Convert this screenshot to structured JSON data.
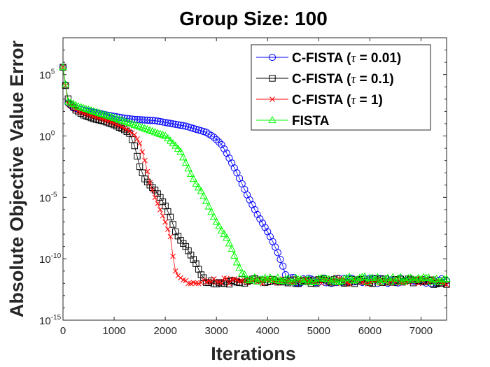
{
  "chart_data": {
    "type": "line",
    "title": "Group Size:  100",
    "xlabel": "Iterations",
    "ylabel": "Absolute Objective Value Error",
    "xlim": [
      0,
      7500
    ],
    "ylim_log10": [
      -15,
      8
    ],
    "x_ticks": [
      0,
      1000,
      2000,
      3000,
      4000,
      5000,
      6000,
      7000
    ],
    "y_ticks": [
      {
        "base": "10",
        "exp": "5",
        "log10": 5
      },
      {
        "base": "10",
        "exp": "0",
        "log10": 0
      },
      {
        "base": "10",
        "exp": "-5",
        "log10": -5
      },
      {
        "base": "10",
        "exp": "-10",
        "log10": -10
      },
      {
        "base": "10",
        "exp": "-15",
        "log10": -15
      }
    ],
    "legend_position": "top-right",
    "series": [
      {
        "name": "C-FISTA (τ = 0.01)",
        "legend_prefix": "C-FISTA (",
        "legend_tau": "τ",
        "legend_suffix": " = 0.01)",
        "color": "#0000ff",
        "marker": "circle",
        "points": [
          [
            0,
            5.6
          ],
          [
            100,
            2.7
          ],
          [
            200,
            2.3
          ],
          [
            400,
            2.1
          ],
          [
            600,
            1.95
          ],
          [
            800,
            1.75
          ],
          [
            1000,
            1.6
          ],
          [
            1200,
            1.45
          ],
          [
            1400,
            1.35
          ],
          [
            1600,
            1.3
          ],
          [
            1800,
            1.25
          ],
          [
            2000,
            1.1
          ],
          [
            2200,
            0.95
          ],
          [
            2400,
            0.8
          ],
          [
            2600,
            0.55
          ],
          [
            2800,
            0.3
          ],
          [
            2950,
            -0.1
          ],
          [
            3100,
            -0.7
          ],
          [
            3200,
            -1.4
          ],
          [
            3300,
            -2.2
          ],
          [
            3400,
            -3.0
          ],
          [
            3500,
            -3.9
          ],
          [
            3600,
            -4.8
          ],
          [
            3700,
            -5.6
          ],
          [
            3800,
            -6.4
          ],
          [
            3900,
            -7.1
          ],
          [
            4000,
            -7.8
          ],
          [
            4100,
            -8.6
          ],
          [
            4200,
            -9.5
          ],
          [
            4300,
            -10.6
          ],
          [
            4350,
            -11.3
          ],
          [
            4400,
            -11.7
          ],
          [
            4600,
            -11.75
          ],
          [
            5000,
            -11.8
          ],
          [
            5500,
            -11.78
          ],
          [
            6000,
            -11.8
          ],
          [
            6500,
            -11.82
          ],
          [
            7000,
            -11.8
          ],
          [
            7500,
            -11.85
          ]
        ]
      },
      {
        "name": "C-FISTA (τ = 0.1)",
        "legend_prefix": "C-FISTA (",
        "legend_tau": "τ",
        "legend_suffix": " = 0.1)",
        "color": "#000000",
        "marker": "square",
        "points": [
          [
            0,
            5.6
          ],
          [
            80,
            3.2
          ],
          [
            150,
            2.6
          ],
          [
            250,
            2.1
          ],
          [
            400,
            1.7
          ],
          [
            600,
            1.4
          ],
          [
            800,
            1.2
          ],
          [
            1000,
            0.9
          ],
          [
            1200,
            0.5
          ],
          [
            1300,
            0.2
          ],
          [
            1400,
            -0.8
          ],
          [
            1500,
            -2.5
          ],
          [
            1600,
            -3.5
          ],
          [
            1700,
            -4.0
          ],
          [
            1800,
            -4.4
          ],
          [
            1900,
            -5.0
          ],
          [
            2000,
            -5.7
          ],
          [
            2100,
            -6.6
          ],
          [
            2200,
            -7.8
          ],
          [
            2300,
            -8.5
          ],
          [
            2400,
            -9.0
          ],
          [
            2500,
            -9.7
          ],
          [
            2600,
            -10.4
          ],
          [
            2700,
            -11.3
          ],
          [
            2800,
            -11.75
          ],
          [
            3000,
            -11.9
          ],
          [
            3500,
            -11.85
          ],
          [
            4000,
            -11.8
          ],
          [
            5000,
            -11.82
          ],
          [
            6000,
            -11.8
          ],
          [
            7000,
            -11.85
          ],
          [
            7500,
            -11.9
          ]
        ]
      },
      {
        "name": "C-FISTA (τ = 1)",
        "legend_prefix": "C-FISTA (",
        "legend_tau": "τ",
        "legend_suffix": " = 1)",
        "color": "#ff0000",
        "marker": "x",
        "points": [
          [
            0,
            5.6
          ],
          [
            100,
            2.6
          ],
          [
            300,
            2.0
          ],
          [
            600,
            1.6
          ],
          [
            900,
            1.2
          ],
          [
            1100,
            0.85
          ],
          [
            1300,
            0.4
          ],
          [
            1400,
            0.1
          ],
          [
            1500,
            -0.6
          ],
          [
            1600,
            -2.0
          ],
          [
            1700,
            -3.8
          ],
          [
            1800,
            -5.0
          ],
          [
            1900,
            -6.0
          ],
          [
            2000,
            -7.0
          ],
          [
            2100,
            -8.2
          ],
          [
            2150,
            -9.8
          ],
          [
            2200,
            -11.0
          ],
          [
            2300,
            -11.75
          ],
          [
            2500,
            -11.85
          ],
          [
            3000,
            -11.8
          ],
          [
            4000,
            -11.82
          ],
          [
            5000,
            -11.8
          ],
          [
            6000,
            -11.85
          ],
          [
            7000,
            -11.8
          ],
          [
            7500,
            -11.9
          ]
        ]
      },
      {
        "name": "FISTA",
        "legend_prefix": "FISTA",
        "legend_tau": "",
        "legend_suffix": "",
        "color": "#00ff00",
        "marker": "triangle",
        "points": [
          [
            0,
            5.6
          ],
          [
            100,
            2.8
          ],
          [
            300,
            2.4
          ],
          [
            600,
            2.0
          ],
          [
            900,
            1.6
          ],
          [
            1200,
            1.2
          ],
          [
            1400,
            0.9
          ],
          [
            1600,
            0.6
          ],
          [
            1800,
            0.3
          ],
          [
            2000,
            0.0
          ],
          [
            2100,
            -0.4
          ],
          [
            2200,
            -0.8
          ],
          [
            2300,
            -1.3
          ],
          [
            2400,
            -2.2
          ],
          [
            2500,
            -3.1
          ],
          [
            2600,
            -3.9
          ],
          [
            2700,
            -4.5
          ],
          [
            2800,
            -5.3
          ],
          [
            2900,
            -6.2
          ],
          [
            3000,
            -7.0
          ],
          [
            3100,
            -7.7
          ],
          [
            3200,
            -8.3
          ],
          [
            3300,
            -9.2
          ],
          [
            3400,
            -10.3
          ],
          [
            3500,
            -11.2
          ],
          [
            3600,
            -11.5
          ],
          [
            3800,
            -11.65
          ],
          [
            4200,
            -11.7
          ],
          [
            5000,
            -11.72
          ],
          [
            6000,
            -11.68
          ],
          [
            7000,
            -11.7
          ],
          [
            7500,
            -11.72
          ]
        ]
      }
    ]
  }
}
